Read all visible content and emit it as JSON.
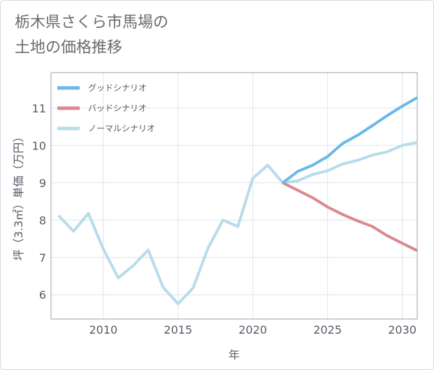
{
  "title_lines": [
    "栃木県さくら市馬場の",
    "土地の価格推移"
  ],
  "chart_data": {
    "type": "line",
    "xlabel": "年",
    "ylabel": "坪（3.3㎡）単価（万円）",
    "xlim": [
      2006.5,
      2031
    ],
    "ylim": [
      5.35,
      11.95
    ],
    "xticks": [
      2010,
      2015,
      2020,
      2025,
      2030
    ],
    "yticks": [
      6,
      7,
      8,
      9,
      10,
      11
    ],
    "grid": true,
    "legend_position": "top-left",
    "series": [
      {
        "name": "グッドシナリオ",
        "color": "#6cb8e8",
        "x": [
          2022,
          2023,
          2024,
          2025,
          2026,
          2027,
          2028,
          2029,
          2030,
          2031
        ],
        "y": [
          9.0,
          9.3,
          9.47,
          9.7,
          10.05,
          10.27,
          10.53,
          10.8,
          11.05,
          11.28
        ]
      },
      {
        "name": "バッドシナリオ",
        "color": "#d98a8f",
        "x": [
          2022,
          2023,
          2024,
          2025,
          2026,
          2027,
          2028,
          2029,
          2030,
          2031
        ],
        "y": [
          9.0,
          8.8,
          8.6,
          8.35,
          8.15,
          7.98,
          7.83,
          7.58,
          7.38,
          7.18
        ]
      },
      {
        "name": "ノーマルシナリオ",
        "color": "#b9dcea",
        "x": [
          2007,
          2008,
          2009,
          2010,
          2011,
          2012,
          2013,
          2014,
          2015,
          2016,
          2017,
          2018,
          2019,
          2020,
          2021,
          2022,
          2023,
          2024,
          2025,
          2026,
          2027,
          2028,
          2029,
          2030,
          2031
        ],
        "y": [
          8.12,
          7.7,
          8.18,
          7.22,
          6.45,
          6.78,
          7.2,
          6.2,
          5.76,
          6.18,
          7.25,
          8.0,
          7.83,
          9.12,
          9.47,
          9.0,
          9.05,
          9.22,
          9.32,
          9.5,
          9.6,
          9.74,
          9.83,
          10.0,
          10.08
        ]
      }
    ]
  }
}
